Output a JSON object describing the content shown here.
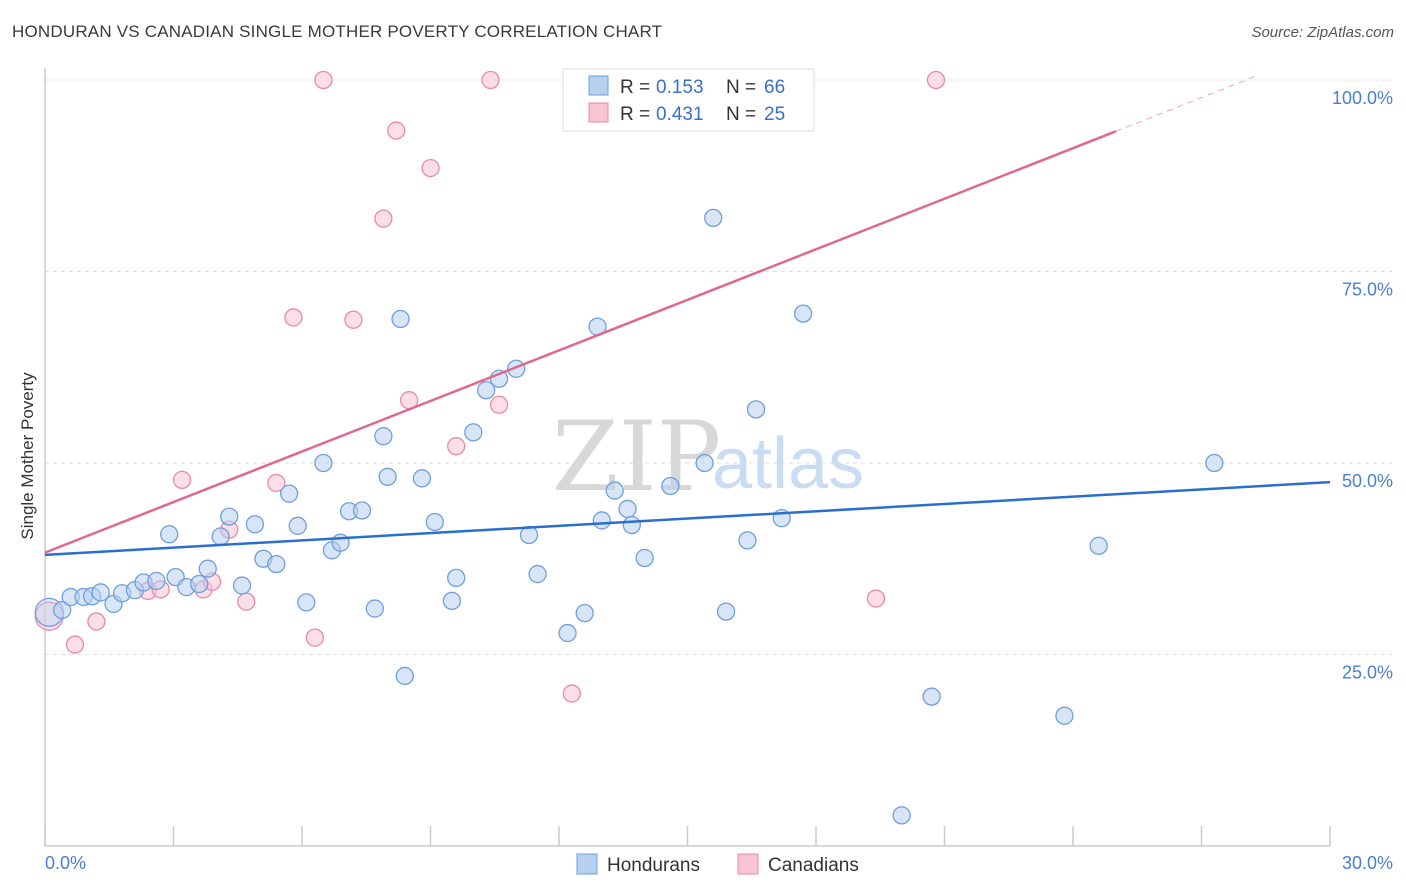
{
  "header": {
    "title": "HONDURAN VS CANADIAN SINGLE MOTHER POVERTY CORRELATION CHART",
    "source": "Source: ZipAtlas.com"
  },
  "watermark": {
    "zip": "ZIP",
    "atlas": "atlas"
  },
  "chart_data": {
    "type": "scatter",
    "title": "HONDURAN VS CANADIAN SINGLE MOTHER POVERTY CORRELATION CHART",
    "xlabel": "",
    "ylabel": "Single Mother Poverty",
    "xlim": [
      0,
      30
    ],
    "ylim": [
      0,
      105
    ],
    "x_tick_labels": {
      "min": "0.0%",
      "max": "30.0%"
    },
    "y_ticks": [
      {
        "value": 25,
        "label": "25.0%"
      },
      {
        "value": 50,
        "label": "50.0%"
      },
      {
        "value": 75,
        "label": "75.0%"
      },
      {
        "value": 100,
        "label": "100.0%"
      }
    ],
    "grid": true,
    "legend": {
      "placement": "top-center",
      "entries": [
        {
          "r_label": "R =",
          "r_value": "0.153",
          "n_label": "N =",
          "n_value": "66"
        },
        {
          "r_label": "R =",
          "r_value": "0.431",
          "n_label": "N =",
          "n_value": "25"
        }
      ]
    },
    "bottom_legend": [
      "Hondurans",
      "Canadians"
    ],
    "colors": {
      "hondurans_fill": "#b8d0f0",
      "hondurans_stroke": "#6f9fdc",
      "hondurans_line": "#2a6fce",
      "canadians_fill": "#f8c3d3",
      "canadians_stroke": "#e88aa8",
      "canadians_line": "#e06890"
    },
    "series": [
      {
        "name": "Hondurans",
        "trend": {
          "x0": 0,
          "y0": 38.0,
          "x1": 30,
          "y1": 47.5,
          "dashed_to": 30
        },
        "points": [
          {
            "x": 0.1,
            "y": 30.5,
            "big": true
          },
          {
            "x": 0.4,
            "y": 30.8
          },
          {
            "x": 0.6,
            "y": 32.5
          },
          {
            "x": 0.9,
            "y": 32.5
          },
          {
            "x": 1.1,
            "y": 32.6
          },
          {
            "x": 1.3,
            "y": 33.1
          },
          {
            "x": 1.6,
            "y": 31.6
          },
          {
            "x": 1.8,
            "y": 33.0
          },
          {
            "x": 2.1,
            "y": 33.4
          },
          {
            "x": 2.3,
            "y": 34.4
          },
          {
            "x": 2.6,
            "y": 34.6
          },
          {
            "x": 2.9,
            "y": 40.7
          },
          {
            "x": 3.05,
            "y": 35.1
          },
          {
            "x": 3.3,
            "y": 33.8
          },
          {
            "x": 3.6,
            "y": 34.2
          },
          {
            "x": 3.8,
            "y": 36.2
          },
          {
            "x": 4.1,
            "y": 40.4
          },
          {
            "x": 4.3,
            "y": 43.0
          },
          {
            "x": 4.6,
            "y": 34.0
          },
          {
            "x": 4.9,
            "y": 42.0
          },
          {
            "x": 5.1,
            "y": 37.5
          },
          {
            "x": 5.4,
            "y": 36.8
          },
          {
            "x": 5.7,
            "y": 46.0
          },
          {
            "x": 5.9,
            "y": 41.8
          },
          {
            "x": 6.1,
            "y": 31.8
          },
          {
            "x": 6.5,
            "y": 50.0
          },
          {
            "x": 6.7,
            "y": 38.6
          },
          {
            "x": 6.9,
            "y": 39.6
          },
          {
            "x": 7.1,
            "y": 43.7
          },
          {
            "x": 7.4,
            "y": 43.8
          },
          {
            "x": 7.7,
            "y": 31.0
          },
          {
            "x": 7.9,
            "y": 53.5
          },
          {
            "x": 8.0,
            "y": 48.2
          },
          {
            "x": 8.3,
            "y": 68.8
          },
          {
            "x": 8.4,
            "y": 22.2
          },
          {
            "x": 8.8,
            "y": 48.0
          },
          {
            "x": 9.1,
            "y": 42.3
          },
          {
            "x": 9.5,
            "y": 32.0
          },
          {
            "x": 9.6,
            "y": 35.0
          },
          {
            "x": 10.0,
            "y": 54.0
          },
          {
            "x": 10.3,
            "y": 59.5
          },
          {
            "x": 10.6,
            "y": 61.0
          },
          {
            "x": 11.0,
            "y": 62.3
          },
          {
            "x": 11.3,
            "y": 40.6
          },
          {
            "x": 11.5,
            "y": 35.5
          },
          {
            "x": 12.2,
            "y": 27.8
          },
          {
            "x": 12.6,
            "y": 30.4
          },
          {
            "x": 12.9,
            "y": 67.8
          },
          {
            "x": 13.0,
            "y": 42.5
          },
          {
            "x": 13.3,
            "y": 46.4
          },
          {
            "x": 13.6,
            "y": 44.0
          },
          {
            "x": 13.7,
            "y": 41.9
          },
          {
            "x": 14.0,
            "y": 37.6
          },
          {
            "x": 14.6,
            "y": 47.0
          },
          {
            "x": 15.4,
            "y": 50.0
          },
          {
            "x": 15.6,
            "y": 82.0
          },
          {
            "x": 15.9,
            "y": 30.6
          },
          {
            "x": 16.4,
            "y": 39.9
          },
          {
            "x": 16.6,
            "y": 57.0
          },
          {
            "x": 17.2,
            "y": 42.8
          },
          {
            "x": 17.7,
            "y": 69.5
          },
          {
            "x": 20.0,
            "y": 4.0
          },
          {
            "x": 20.7,
            "y": 19.5
          },
          {
            "x": 23.8,
            "y": 17.0
          },
          {
            "x": 24.6,
            "y": 39.2
          },
          {
            "x": 27.3,
            "y": 50.0
          }
        ]
      },
      {
        "name": "Canadians",
        "trend": {
          "x0": 0,
          "y0": 38.3,
          "x1": 25,
          "y1": 93.3,
          "dashed_to": 28.3
        },
        "points": [
          {
            "x": 0.1,
            "y": 30.0,
            "big": true
          },
          {
            "x": 0.7,
            "y": 26.3
          },
          {
            "x": 1.2,
            "y": 29.3
          },
          {
            "x": 2.4,
            "y": 33.3
          },
          {
            "x": 2.7,
            "y": 33.5
          },
          {
            "x": 3.2,
            "y": 47.8
          },
          {
            "x": 3.7,
            "y": 33.5
          },
          {
            "x": 3.9,
            "y": 34.5
          },
          {
            "x": 4.3,
            "y": 41.3
          },
          {
            "x": 4.7,
            "y": 31.9
          },
          {
            "x": 5.4,
            "y": 47.4
          },
          {
            "x": 5.8,
            "y": 69.0
          },
          {
            "x": 6.3,
            "y": 27.2
          },
          {
            "x": 6.5,
            "y": 100.0
          },
          {
            "x": 7.2,
            "y": 68.7
          },
          {
            "x": 7.9,
            "y": 81.9
          },
          {
            "x": 8.2,
            "y": 93.4
          },
          {
            "x": 8.5,
            "y": 58.2
          },
          {
            "x": 9.0,
            "y": 88.5
          },
          {
            "x": 9.6,
            "y": 52.2
          },
          {
            "x": 10.4,
            "y": 100.0
          },
          {
            "x": 10.6,
            "y": 57.6
          },
          {
            "x": 12.3,
            "y": 19.9
          },
          {
            "x": 19.4,
            "y": 32.3
          },
          {
            "x": 20.8,
            "y": 100.0
          }
        ]
      }
    ]
  }
}
